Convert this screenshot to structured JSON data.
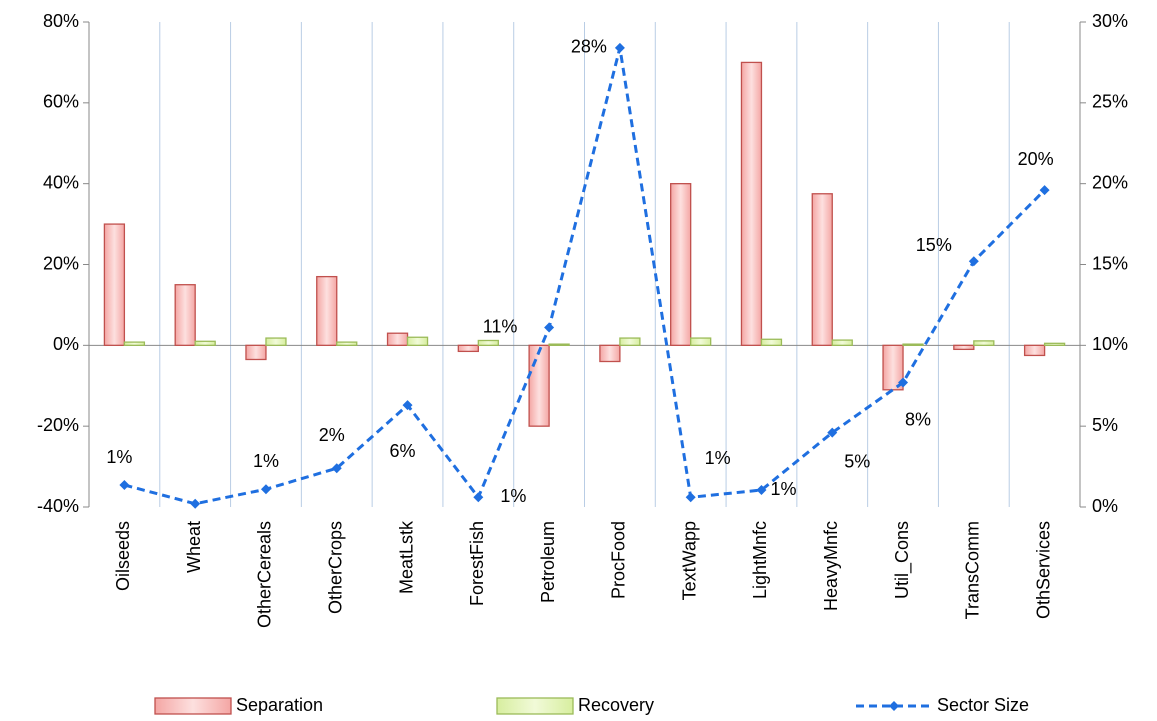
{
  "chart_data": {
    "type": "bar-line",
    "categories": [
      "Oilseeds",
      "Wheat",
      "OtherCereals",
      "OtherCrops",
      "MeatLstk",
      "ForestFish",
      "Petroleum",
      "ProcFood",
      "TextWapp",
      "LightMnfc",
      "HeavyMnfc",
      "Util_Cons",
      "TransComm",
      "OthServices"
    ],
    "series": [
      {
        "name": "Separation",
        "type": "bar",
        "color": "#c0504d",
        "values": [
          30,
          15,
          -3.5,
          17,
          3,
          -1.5,
          -20,
          -4,
          40,
          70,
          37.5,
          -11,
          -1,
          -2.5
        ]
      },
      {
        "name": "Recovery",
        "type": "bar",
        "color": "#9bbb59",
        "values": [
          0.8,
          1,
          1.8,
          0.8,
          2,
          1.2,
          0.3,
          1.8,
          1.8,
          1.5,
          1.3,
          0.3,
          1.1,
          0.5
        ]
      },
      {
        "name": "Sector Size",
        "type": "line",
        "axis": "y2",
        "color": "#1f6fe0",
        "dashed": true,
        "values": [
          1.36,
          0.2,
          1.1,
          2.4,
          6.3,
          0.6,
          11.1,
          28.4,
          0.6,
          1.05,
          4.6,
          7.7,
          15.2,
          19.6
        ],
        "value_labels": [
          "1%",
          null,
          "1%",
          "2%",
          "6%",
          "1%",
          "11%",
          "28%",
          "1%",
          "1%",
          "5%",
          "8%",
          "15%",
          "20%"
        ]
      }
    ],
    "ylim": [
      -40,
      80
    ],
    "yticks": [
      {
        "value": -40,
        "label": "-40%"
      },
      {
        "value": -20,
        "label": "-20%"
      },
      {
        "value": 0,
        "label": "0%"
      },
      {
        "value": 20,
        "label": "20%"
      },
      {
        "value": 40,
        "label": "40%"
      },
      {
        "value": 60,
        "label": "60%"
      },
      {
        "value": 80,
        "label": "80%"
      }
    ],
    "y2lim": [
      0,
      30
    ],
    "y2ticks": [
      {
        "value": 0,
        "label": "0%"
      },
      {
        "value": 5,
        "label": "5%"
      },
      {
        "value": 10,
        "label": "10%"
      },
      {
        "value": 15,
        "label": "15%"
      },
      {
        "value": 20,
        "label": "20%"
      },
      {
        "value": 25,
        "label": "25%"
      },
      {
        "value": 30,
        "label": "30%"
      }
    ],
    "grid": "vertical",
    "legend": "bottom"
  }
}
